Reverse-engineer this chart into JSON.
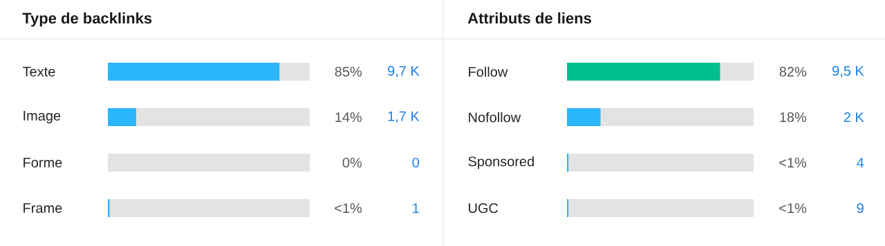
{
  "chart_data": [
    {
      "type": "bar",
      "orientation": "horizontal",
      "title": "Type de backlinks",
      "categories": [
        "Texte",
        "Image",
        "Forme",
        "Frame"
      ],
      "values": [
        85,
        14,
        0,
        0.8
      ],
      "colors": [
        "#2bb5fb",
        "#2bb5fb",
        "#2bb5fb",
        "#2bb5fb"
      ],
      "xlim": [
        0,
        100
      ],
      "tick_labels": "y",
      "value_labels": [
        "85%",
        "14%",
        "0%",
        "<1%"
      ],
      "annotations": [
        "9,7 K",
        "1,7 K",
        "0",
        "1"
      ]
    },
    {
      "type": "bar",
      "orientation": "horizontal",
      "title": "Attributs de liens",
      "categories": [
        "Follow",
        "Nofollow",
        "Sponsored",
        "UGC"
      ],
      "values": [
        82,
        18,
        0.8,
        0.8
      ],
      "colors": [
        "#00bf8f",
        "#2bb5fb",
        "#2bb5fb",
        "#2bb5fb"
      ],
      "xlim": [
        0,
        100
      ],
      "tick_labels": "y",
      "value_labels": [
        "82%",
        "18%",
        "<1%",
        "<1%"
      ],
      "annotations": [
        "9,5 K",
        "2 K",
        "4",
        "9"
      ]
    }
  ]
}
